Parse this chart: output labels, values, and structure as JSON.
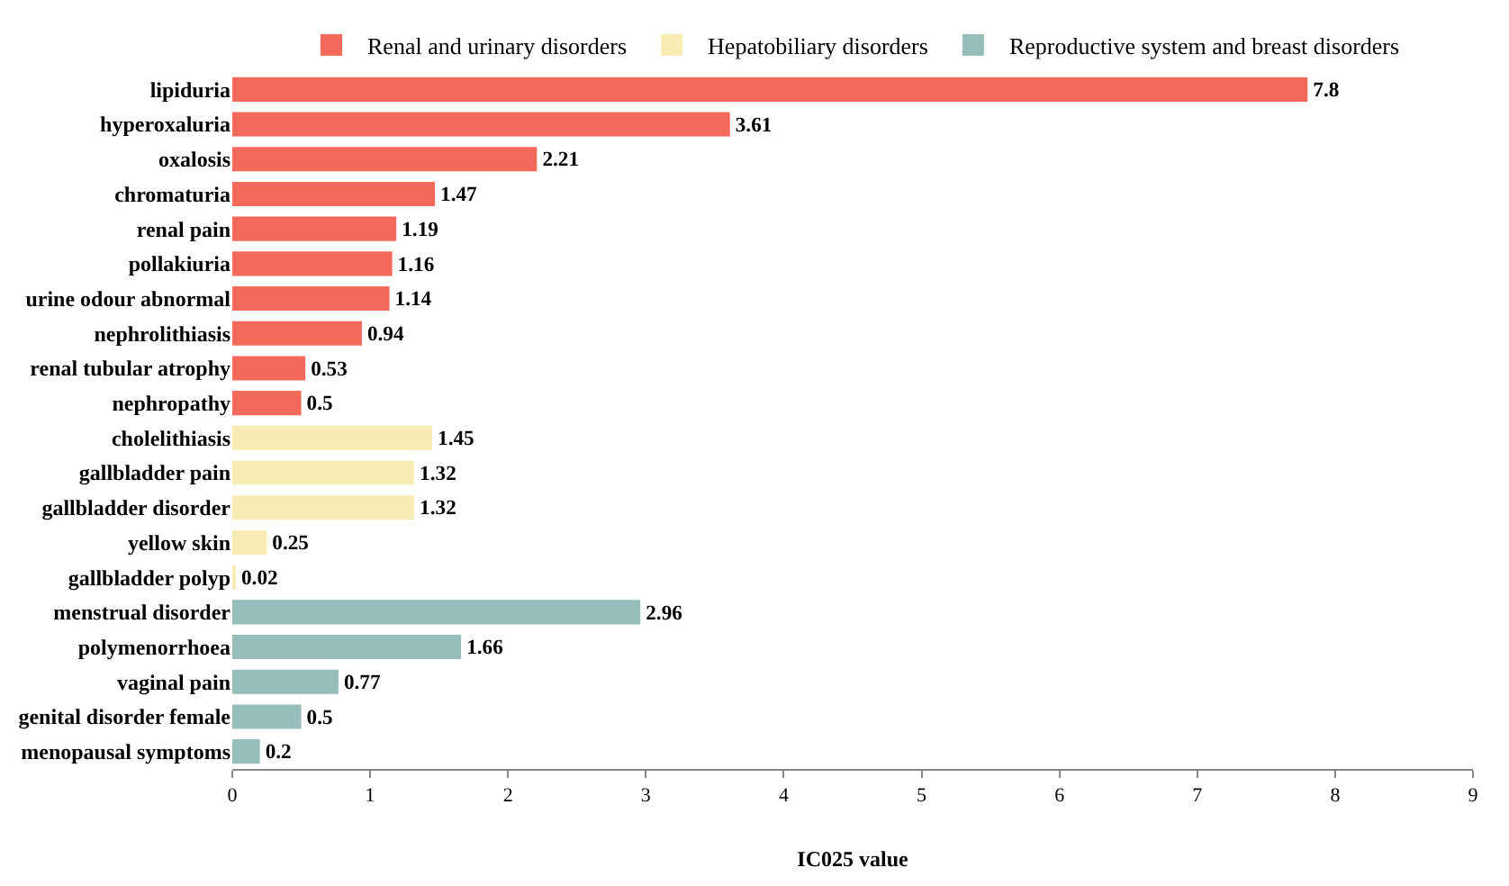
{
  "chart_data": {
    "type": "bar",
    "orientation": "horizontal",
    "xlabel": "IC025 value",
    "xlim": [
      0,
      9
    ],
    "xticks": [
      0,
      1,
      2,
      3,
      4,
      5,
      6,
      7,
      8,
      9
    ],
    "legend": "top",
    "data_labels": true,
    "categories": [
      "lipiduria",
      "hyperoxaluria",
      "oxalosis",
      "chromaturia",
      "renal pain",
      "pollakiuria",
      "urine odour abnormal",
      "nephrolithiasis",
      "renal tubular atrophy",
      "nephropathy",
      "cholelithiasis",
      "gallbladder pain",
      "gallbladder disorder",
      "yellow skin",
      "gallbladder polyp",
      "menstrual disorder",
      "polymenorrhoea",
      "vaginal pain",
      "genital disorder female",
      "menopausal symptoms"
    ],
    "series": [
      {
        "name": "Renal and urinary disorders",
        "color": "#f4695a",
        "values": [
          7.8,
          3.61,
          2.21,
          1.47,
          1.19,
          1.16,
          1.14,
          0.94,
          0.53,
          0.5,
          null,
          null,
          null,
          null,
          null,
          null,
          null,
          null,
          null,
          null
        ]
      },
      {
        "name": "Hepatobiliary disorders",
        "color": "#f8ebb5",
        "values": [
          null,
          null,
          null,
          null,
          null,
          null,
          null,
          null,
          null,
          null,
          1.45,
          1.32,
          1.32,
          0.25,
          0.02,
          null,
          null,
          null,
          null,
          null
        ]
      },
      {
        "name": "Reproductive system and breast disorders",
        "color": "#96bdb9",
        "values": [
          null,
          null,
          null,
          null,
          null,
          null,
          null,
          null,
          null,
          null,
          null,
          null,
          null,
          null,
          null,
          2.96,
          1.66,
          0.77,
          0.5,
          0.2
        ]
      }
    ]
  }
}
